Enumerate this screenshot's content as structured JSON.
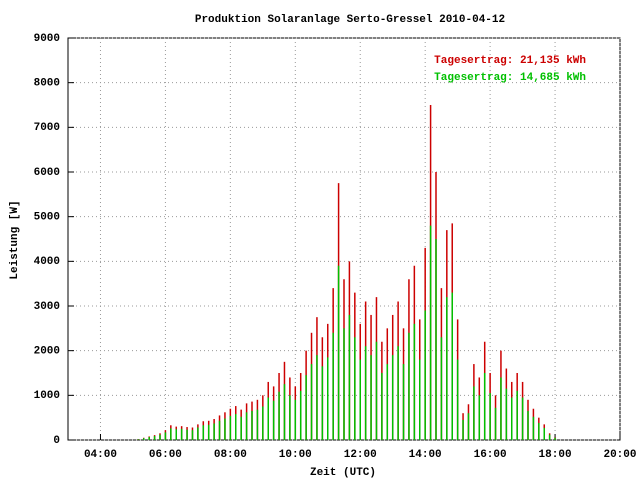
{
  "chart_data": {
    "type": "impulse",
    "title": "Produktion Solaranlage Serto-Gressel 2010-04-12",
    "x_label": "Zeit (UTC)",
    "y_label": "Leistung [W]",
    "x": [
      "05:10",
      "05:20",
      "05:30",
      "05:40",
      "05:50",
      "06:00",
      "06:10",
      "06:20",
      "06:30",
      "06:40",
      "06:50",
      "07:00",
      "07:10",
      "07:20",
      "07:30",
      "07:40",
      "07:50",
      "08:00",
      "08:10",
      "08:20",
      "08:30",
      "08:40",
      "08:50",
      "09:00",
      "09:10",
      "09:20",
      "09:30",
      "09:40",
      "09:50",
      "10:00",
      "10:10",
      "10:20",
      "10:30",
      "10:40",
      "10:50",
      "11:00",
      "11:10",
      "11:20",
      "11:30",
      "11:40",
      "11:50",
      "12:00",
      "12:10",
      "12:20",
      "12:30",
      "12:40",
      "12:50",
      "13:00",
      "13:10",
      "13:20",
      "13:30",
      "13:40",
      "13:50",
      "14:00",
      "14:10",
      "14:20",
      "14:30",
      "14:40",
      "14:50",
      "15:00",
      "15:10",
      "15:20",
      "15:30",
      "15:40",
      "15:50",
      "16:00",
      "16:10",
      "16:20",
      "16:30",
      "16:40",
      "16:50",
      "17:00",
      "17:10",
      "17:20",
      "17:30",
      "17:40",
      "17:50",
      "18:00"
    ],
    "series": [
      {
        "name": "Tagesertrag: 21,135 kWh",
        "color": "#cc0000",
        "values": [
          20,
          50,
          80,
          110,
          150,
          220,
          330,
          300,
          310,
          290,
          280,
          350,
          420,
          430,
          470,
          550,
          620,
          700,
          760,
          680,
          820,
          860,
          900,
          1000,
          1300,
          1200,
          1500,
          1750,
          1400,
          1200,
          1500,
          2000,
          2400,
          2750,
          2300,
          2600,
          3400,
          5750,
          3600,
          4000,
          3300,
          2600,
          3100,
          2800,
          3200,
          2200,
          2500,
          2800,
          3100,
          2500,
          3600,
          3900,
          2700,
          4300,
          7500,
          6000,
          3400,
          4700,
          4850,
          2700,
          600,
          800,
          1700,
          1400,
          2200,
          1500,
          1000,
          2000,
          1600,
          1300,
          1500,
          1300,
          900,
          700,
          500,
          350,
          150,
          60
        ]
      },
      {
        "name": "Tagesertrag: 14,685 kWh",
        "color": "#00c000",
        "values": [
          15,
          40,
          65,
          90,
          120,
          170,
          260,
          240,
          250,
          230,
          220,
          280,
          330,
          340,
          370,
          430,
          480,
          540,
          580,
          520,
          620,
          650,
          680,
          750,
          950,
          880,
          1080,
          1250,
          1000,
          900,
          1100,
          1450,
          1700,
          1900,
          1650,
          1850,
          2400,
          3900,
          2500,
          2800,
          2300,
          1800,
          2100,
          1900,
          2200,
          1500,
          1700,
          1900,
          2100,
          1700,
          2400,
          2600,
          1800,
          2900,
          4800,
          4500,
          2300,
          3200,
          3300,
          1800,
          450,
          600,
          1200,
          1000,
          1500,
          1050,
          720,
          1400,
          1150,
          950,
          1100,
          950,
          650,
          520,
          380,
          270,
          120,
          50
        ]
      }
    ],
    "xlim": [
      "03:00",
      "20:00"
    ],
    "xticks": [
      "04:00",
      "06:00",
      "08:00",
      "10:00",
      "12:00",
      "14:00",
      "16:00",
      "18:00",
      "20:00"
    ],
    "ylim": [
      0,
      9000
    ],
    "yticks": [
      0,
      1000,
      2000,
      3000,
      4000,
      5000,
      6000,
      7000,
      8000,
      9000
    ],
    "grid": true,
    "legend": "top-right"
  }
}
